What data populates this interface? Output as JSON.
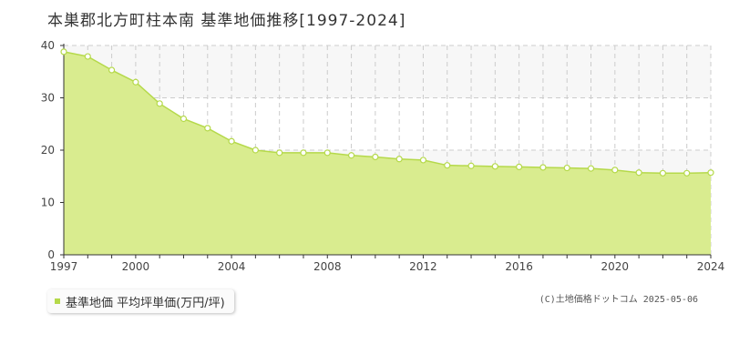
{
  "title": "本巣郡北方町柱本南 基準地価推移[1997-2024]",
  "legend": {
    "label": "基準地価 平均坪単価(万円/坪)"
  },
  "copyright": "(C)土地価格ドットコム 2025-05-06",
  "chart_data": {
    "type": "area",
    "title": "本巣郡北方町柱本南 基準地価推移[1997-2024]",
    "series": [
      {
        "name": "基準地価 平均坪単価(万円/坪)",
        "x": [
          1997,
          1998,
          1999,
          2000,
          2001,
          2002,
          2003,
          2004,
          2005,
          2006,
          2007,
          2008,
          2009,
          2010,
          2011,
          2012,
          2013,
          2014,
          2015,
          2016,
          2017,
          2018,
          2019,
          2020,
          2021,
          2022,
          2023,
          2024
        ],
        "values": [
          38.8,
          37.9,
          35.3,
          33.0,
          28.9,
          26.0,
          24.2,
          21.7,
          20.0,
          19.5,
          19.5,
          19.5,
          19.0,
          18.7,
          18.3,
          18.1,
          17.1,
          17.0,
          16.9,
          16.8,
          16.7,
          16.6,
          16.5,
          16.2,
          15.7,
          15.6,
          15.6,
          15.7
        ]
      }
    ],
    "x_ticks": [
      "1997",
      "2000",
      "2004",
      "2008",
      "2012",
      "2016",
      "2020",
      "2024"
    ],
    "y_ticks": [
      "0",
      "10",
      "20",
      "30",
      "40"
    ],
    "xlim": [
      1997,
      2024
    ],
    "ylim": [
      0,
      40
    ],
    "grid": true,
    "colors": {
      "fill": "#d9ec8f",
      "line": "#b5d94a",
      "marker_fill": "#ffffff",
      "grid": "#cccccc",
      "band": "#f7f7f7"
    }
  }
}
